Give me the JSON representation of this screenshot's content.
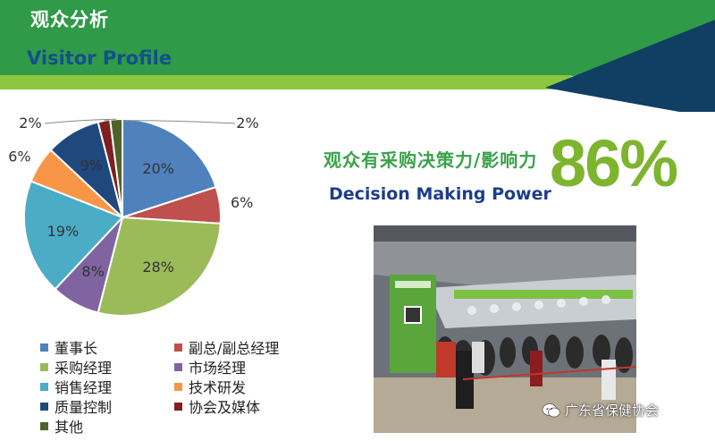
{
  "header": {
    "title_cn": "观众分析",
    "title_en": "Visitor Profile"
  },
  "headline": {
    "text_cn": "观众有采购决策力/影响力",
    "text_en": "Decision Making Power",
    "percent": "86%"
  },
  "watermark": {
    "text": "广东省保健协会",
    "icon": "wechat-icon"
  },
  "colors": {
    "banner_green": "#2f9a48",
    "banner_light": "#8dc63f",
    "banner_navy": "#113e63",
    "accent_green": "#7db52e"
  },
  "chart_data": {
    "type": "pie",
    "slices": [
      {
        "label": "董事长",
        "value": 20,
        "display": "20%",
        "color": "#4f81bd"
      },
      {
        "label": "副总/副总经理",
        "value": 6,
        "display": "6%",
        "color": "#c0504d"
      },
      {
        "label": "采购经理",
        "value": 28,
        "display": "28%",
        "color": "#9bbb59"
      },
      {
        "label": "市场经理",
        "value": 8,
        "display": "8%",
        "color": "#8064a2"
      },
      {
        "label": "销售经理",
        "value": 19,
        "display": "19%",
        "color": "#4bacc6"
      },
      {
        "label": "技术研发",
        "value": 6,
        "display": "6%",
        "color": "#f79646"
      },
      {
        "label": "质量控制",
        "value": 9,
        "display": "9%",
        "color": "#1f497d"
      },
      {
        "label": "协会及媒体",
        "value": 2,
        "display": "2%",
        "color": "#7f1f1f"
      },
      {
        "label": "其他",
        "value": 2,
        "display": "2%",
        "color": "#4f6228"
      }
    ],
    "legend": [
      [
        "董事长",
        "副总/副总经理"
      ],
      [
        "采购经理",
        "市场经理"
      ],
      [
        "销售经理",
        "技术研发"
      ],
      [
        "质量控制",
        "协会及媒体"
      ],
      [
        "其他"
      ]
    ],
    "legend_position": "bottom"
  }
}
